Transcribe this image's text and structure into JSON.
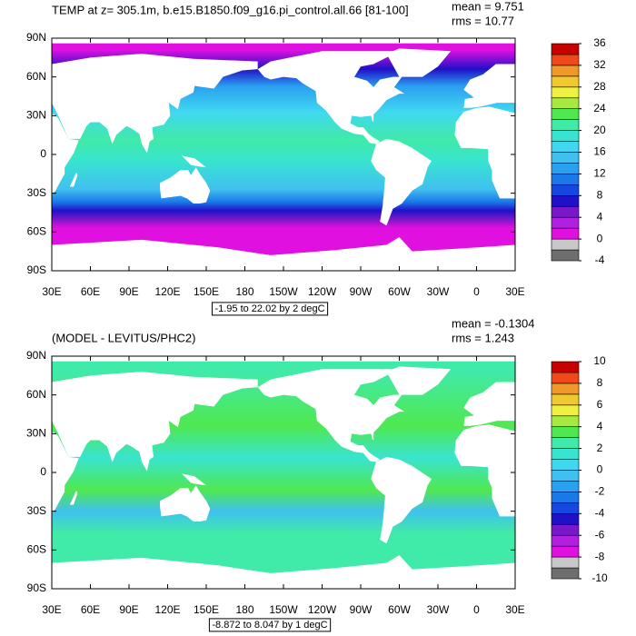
{
  "chart_data": [
    {
      "type": "contour-map",
      "title": "TEMP at z= 305.1m, b.e15.B1850.f09_g16.pi_control.all.66 [81-100]",
      "mean_label": "mean = 9.751",
      "rms_label": "rms = 10.77",
      "range_label": "-1.95 to 22.02 by 2 degC",
      "xlim": [
        30,
        390
      ],
      "xticks": [
        {
          "value": 30,
          "label": "30E"
        },
        {
          "value": 60,
          "label": "60E"
        },
        {
          "value": 90,
          "label": "90E"
        },
        {
          "value": 120,
          "label": "120E"
        },
        {
          "value": 150,
          "label": "150E"
        },
        {
          "value": 180,
          "label": "180"
        },
        {
          "value": 210,
          "label": "150W"
        },
        {
          "value": 240,
          "label": "120W"
        },
        {
          "value": 270,
          "label": "90W"
        },
        {
          "value": 300,
          "label": "60W"
        },
        {
          "value": 330,
          "label": "30W"
        },
        {
          "value": 360,
          "label": "0"
        },
        {
          "value": 390,
          "label": "30E"
        }
      ],
      "ylim": [
        -90,
        90
      ],
      "yticks": [
        {
          "value": -90,
          "label": "90S"
        },
        {
          "value": -60,
          "label": "60S"
        },
        {
          "value": -30,
          "label": "30S"
        },
        {
          "value": 0,
          "label": "0"
        },
        {
          "value": 30,
          "label": "30N"
        },
        {
          "value": 60,
          "label": "60N"
        },
        {
          "value": 90,
          "label": "90N"
        }
      ],
      "colorbar": {
        "lim": [
          -4,
          36
        ],
        "ticks": [
          -4,
          0,
          4,
          8,
          12,
          16,
          20,
          24,
          28,
          32,
          36
        ],
        "colors": [
          "#6e6e6e",
          "#c8c8c8",
          "#e010e0",
          "#b020e0",
          "#7818c8",
          "#2010c8",
          "#1448e0",
          "#1a78e8",
          "#2aa0f0",
          "#40c0f0",
          "#40d8f0",
          "#38e4d0",
          "#40eaa8",
          "#50e850",
          "#a8e840",
          "#f0f040",
          "#f0c830",
          "#f09828",
          "#f04818",
          "#c80000"
        ]
      }
    },
    {
      "type": "contour-map",
      "title": "(MODEL - LEVITUS/PHC2)",
      "mean_label": "mean = -0.1304",
      "rms_label": "rms = 1.243",
      "range_label": "-8.872 to 8.047 by 1 degC",
      "xlim": [
        30,
        390
      ],
      "xticks": [
        {
          "value": 30,
          "label": "30E"
        },
        {
          "value": 60,
          "label": "60E"
        },
        {
          "value": 90,
          "label": "90E"
        },
        {
          "value": 120,
          "label": "120E"
        },
        {
          "value": 150,
          "label": "150E"
        },
        {
          "value": 180,
          "label": "180"
        },
        {
          "value": 210,
          "label": "150W"
        },
        {
          "value": 240,
          "label": "120W"
        },
        {
          "value": 270,
          "label": "90W"
        },
        {
          "value": 300,
          "label": "60W"
        },
        {
          "value": 330,
          "label": "30W"
        },
        {
          "value": 360,
          "label": "0"
        },
        {
          "value": 390,
          "label": "30E"
        }
      ],
      "ylim": [
        -90,
        90
      ],
      "yticks": [
        {
          "value": -90,
          "label": "90S"
        },
        {
          "value": -60,
          "label": "60S"
        },
        {
          "value": -30,
          "label": "30S"
        },
        {
          "value": 0,
          "label": "0"
        },
        {
          "value": 30,
          "label": "30N"
        },
        {
          "value": 60,
          "label": "60N"
        },
        {
          "value": 90,
          "label": "90N"
        }
      ],
      "colorbar": {
        "lim": [
          -10,
          10
        ],
        "ticks": [
          -10,
          -8,
          -6,
          -4,
          -2,
          0,
          2,
          4,
          6,
          8,
          10
        ],
        "colors": [
          "#6e6e6e",
          "#c8c8c8",
          "#e010e0",
          "#b020e0",
          "#7818c8",
          "#2010c8",
          "#1448e0",
          "#1a78e8",
          "#2aa0f0",
          "#40c0f0",
          "#40d8f0",
          "#38e4d0",
          "#40eaa8",
          "#50e850",
          "#a8e840",
          "#f0f040",
          "#f0c830",
          "#f09828",
          "#f04818",
          "#c80000"
        ]
      }
    }
  ]
}
